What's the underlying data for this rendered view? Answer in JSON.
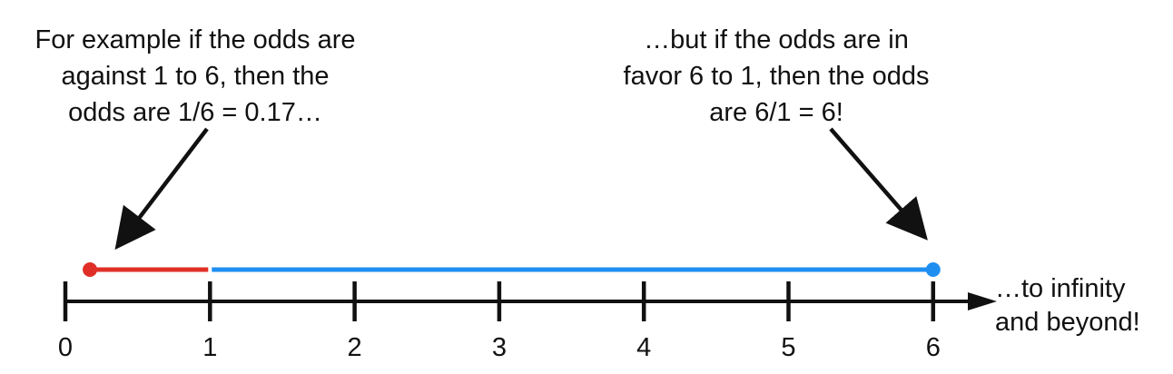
{
  "annotations": {
    "left_note": [
      "For example if the odds are",
      "against 1 to 6, then the",
      "odds are 1/6 = 0.17…"
    ],
    "right_note": [
      "…but if the odds are in",
      "favor 6 to 1, then the odds",
      "are 6/1 = 6!"
    ],
    "end_note": [
      "…to infinity",
      "and beyond!"
    ]
  },
  "number_line": {
    "ticks": [
      "0",
      "1",
      "2",
      "3",
      "4",
      "5",
      "6"
    ],
    "tick_values": [
      0,
      1,
      2,
      3,
      4,
      5,
      6
    ],
    "segments": [
      {
        "from": 0.17,
        "to": 1,
        "color": "#e02f26"
      },
      {
        "from": 1,
        "to": 6,
        "color": "#1f8ef1"
      }
    ],
    "points": [
      {
        "value": 0.17,
        "color": "#e02f26"
      },
      {
        "value": 6,
        "color": "#1f8ef1"
      }
    ]
  },
  "colors": {
    "axis": "#111111",
    "against": "#e02f26",
    "favor": "#1f8ef1"
  }
}
